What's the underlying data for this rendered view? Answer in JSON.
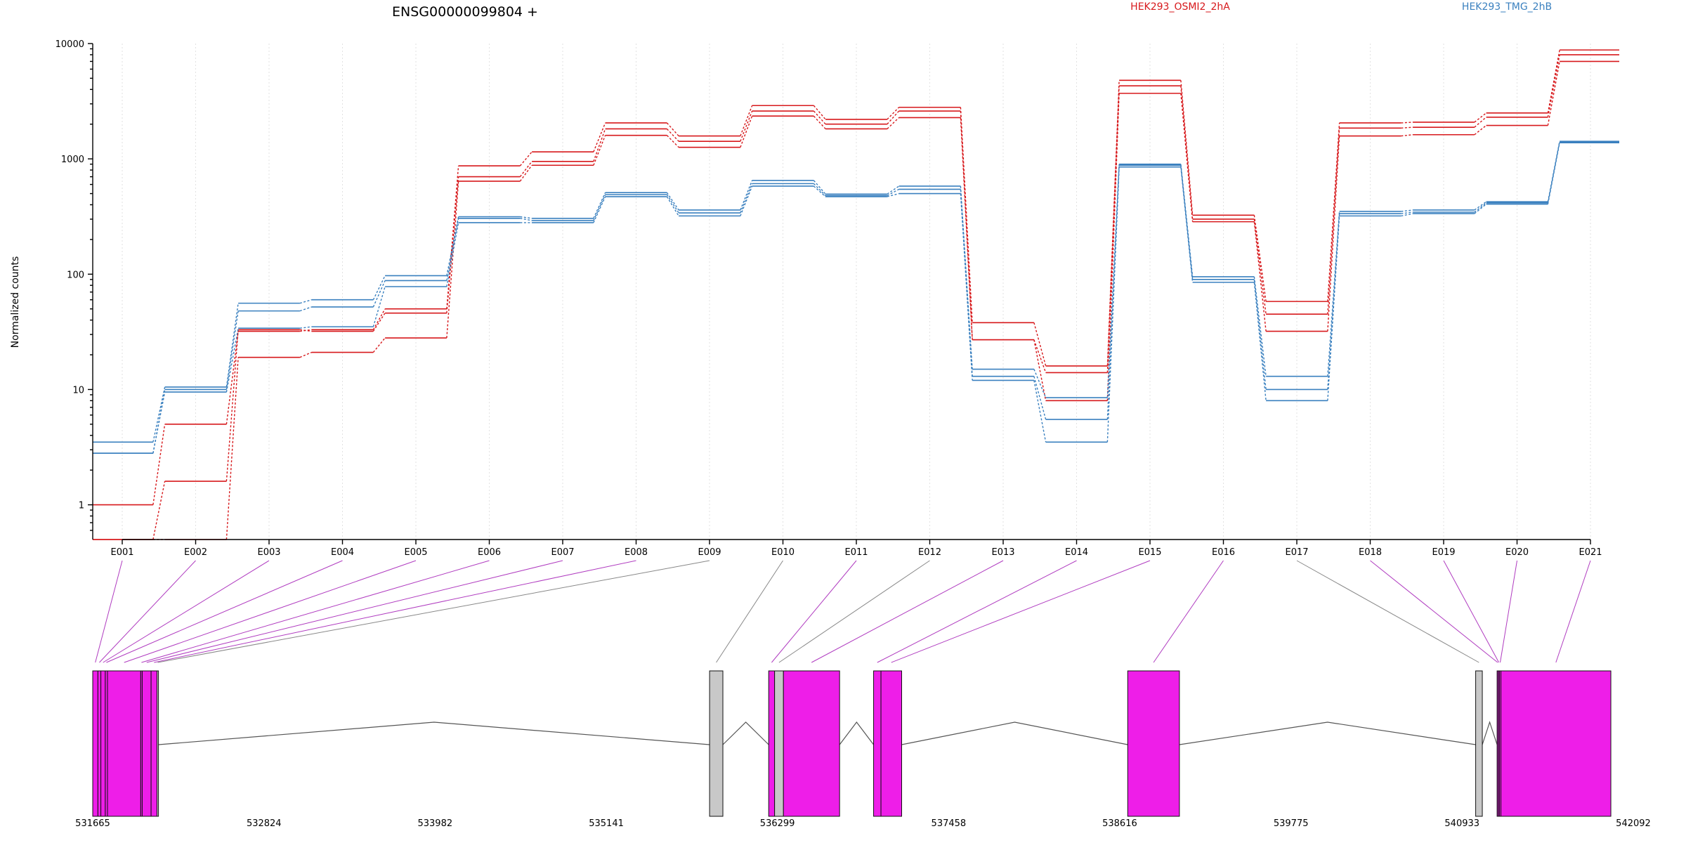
{
  "chart_data": {
    "type": "line",
    "title": "ENSG00000099804 +",
    "ylabel": "Normalized counts",
    "yscale": "log",
    "ylim": [
      0.5,
      10000
    ],
    "yticks": [
      "1",
      "10",
      "100",
      "1000",
      "10000"
    ],
    "yticks_values": [
      1,
      10,
      100,
      1000,
      10000
    ],
    "exons": [
      "E001",
      "E002",
      "E003",
      "E004",
      "E005",
      "E006",
      "E007",
      "E008",
      "E009",
      "E010",
      "E011",
      "E012",
      "E013",
      "E014",
      "E015",
      "E016",
      "E017",
      "E018",
      "E019",
      "E020",
      "E021"
    ],
    "legend": [
      {
        "label": "HEK293_OSMI2_2hA",
        "color": "#d7191c"
      },
      {
        "label": "HEK293_TMG_2hB",
        "color": "#3a80bf"
      }
    ],
    "series": [
      {
        "group": "HEK293_OSMI2_2hA",
        "color": "#d7191c",
        "values": [
          1.0,
          5.0,
          32,
          33,
          50,
          870,
          1150,
          2050,
          1580,
          2900,
          2200,
          2800,
          38,
          16,
          4800,
          325,
          58,
          2050,
          2080,
          2500,
          8800
        ]
      },
      {
        "group": "HEK293_OSMI2_2hA",
        "color": "#d7191c",
        "values": [
          0.5,
          1.6,
          33,
          32,
          46,
          700,
          950,
          1820,
          1420,
          2600,
          2000,
          2600,
          27,
          14,
          4300,
          300,
          45,
          1850,
          1880,
          2300,
          8000
        ]
      },
      {
        "group": "HEK293_OSMI2_2hA",
        "color": "#d7191c",
        "values": [
          0.5,
          0.5,
          19,
          21,
          28,
          640,
          880,
          1600,
          1260,
          2350,
          1820,
          2280,
          27,
          8,
          3700,
          285,
          32,
          1580,
          1620,
          1950,
          7000
        ]
      },
      {
        "group": "HEK293_TMG_2hB",
        "color": "#3a80bf",
        "values": [
          3.5,
          10.5,
          56,
          60,
          97,
          315,
          305,
          510,
          360,
          650,
          495,
          580,
          15,
          8.5,
          900,
          95,
          13,
          350,
          360,
          425,
          1420
        ]
      },
      {
        "group": "HEK293_TMG_2hB",
        "color": "#3a80bf",
        "values": [
          2.8,
          10.0,
          48,
          52,
          88,
          305,
          292,
          490,
          340,
          610,
          480,
          545,
          13,
          5.5,
          880,
          90,
          10,
          335,
          345,
          415,
          1400
        ]
      },
      {
        "group": "HEK293_TMG_2hB",
        "color": "#3a80bf",
        "values": [
          2.8,
          9.5,
          34,
          35,
          78,
          280,
          280,
          470,
          320,
          580,
          470,
          500,
          12,
          3.5,
          850,
          85,
          8,
          320,
          335,
          405,
          1380
        ]
      }
    ],
    "gene_model": {
      "coordinates": [
        "531665",
        "532824",
        "533982",
        "535141",
        "536299",
        "537458",
        "538616",
        "539775",
        "540933",
        "542092"
      ],
      "coordinate_values": [
        531665,
        532824,
        533982,
        535141,
        536299,
        537458,
        538616,
        539775,
        540933,
        542092
      ],
      "xlim": [
        531665,
        542092
      ],
      "exons": [
        {
          "id": "E001",
          "start": 531665,
          "end": 531700,
          "color": "#ee1ee8"
        },
        {
          "id": "E002",
          "start": 531700,
          "end": 531720,
          "color": "#ee1ee8"
        },
        {
          "id": "E003",
          "start": 531720,
          "end": 531750,
          "color": "#ee1ee8"
        },
        {
          "id": "E004",
          "start": 531750,
          "end": 531765,
          "color": "#ee1ee8"
        },
        {
          "id": "E005",
          "start": 531765,
          "end": 531990,
          "color": "#ee1ee8"
        },
        {
          "id": "E006",
          "start": 531990,
          "end": 532000,
          "color": "#ee1ee8"
        },
        {
          "id": "E007",
          "start": 532000,
          "end": 532060,
          "color": "#ee1ee8"
        },
        {
          "id": "E008",
          "start": 532060,
          "end": 532100,
          "color": "#ee1ee8"
        },
        {
          "id": "E009",
          "start": 532100,
          "end": 532110,
          "color": "#c8c8c8"
        },
        {
          "id": "E010",
          "start": 535840,
          "end": 535930,
          "color": "#c8c8c8"
        },
        {
          "id": "E011",
          "start": 536240,
          "end": 536280,
          "color": "#ee1ee8"
        },
        {
          "id": "E012",
          "start": 536280,
          "end": 536340,
          "color": "#c8c8c8"
        },
        {
          "id": "E013",
          "start": 536340,
          "end": 536720,
          "color": "#ee1ee8"
        },
        {
          "id": "E014",
          "start": 536950,
          "end": 537000,
          "color": "#ee1ee8"
        },
        {
          "id": "E015",
          "start": 537000,
          "end": 537140,
          "color": "#ee1ee8"
        },
        {
          "id": "E016",
          "start": 538670,
          "end": 539020,
          "color": "#ee1ee8"
        },
        {
          "id": "E017",
          "start": 541025,
          "end": 541070,
          "color": "#c8c8c8"
        },
        {
          "id": "E018",
          "start": 541170,
          "end": 541178,
          "color": "#ee1ee8"
        },
        {
          "id": "E019",
          "start": 541178,
          "end": 541186,
          "color": "#ee1ee8"
        },
        {
          "id": "E020",
          "start": 541186,
          "end": 541196,
          "color": "#ee1ee8"
        },
        {
          "id": "E021",
          "start": 541196,
          "end": 541940,
          "color": "#ee1ee8"
        }
      ],
      "introns": [
        [
          532110,
          535840
        ],
        [
          535930,
          536240
        ],
        [
          536720,
          536950
        ],
        [
          537140,
          538670
        ],
        [
          539020,
          541025
        ],
        [
          541070,
          541170
        ]
      ]
    }
  }
}
